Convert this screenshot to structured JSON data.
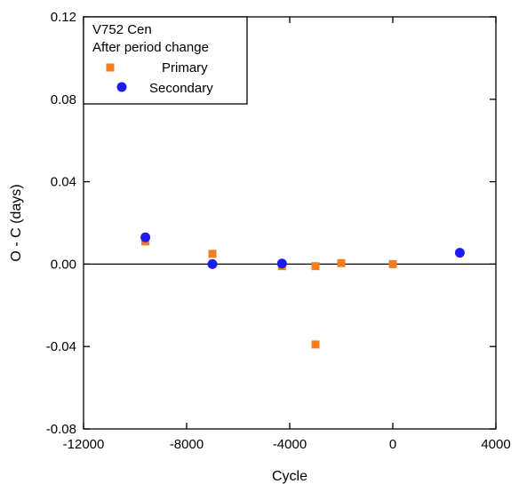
{
  "chart_data": {
    "type": "scatter",
    "title": "",
    "xlabel": "Cycle",
    "ylabel": "O - C (days)",
    "xlim": [
      -12000,
      4000
    ],
    "ylim": [
      -0.08,
      0.12
    ],
    "x_ticks": [
      -12000,
      -8000,
      -4000,
      0,
      4000
    ],
    "x_tick_labels": [
      "-12000",
      "-8000",
      "-4000",
      "0",
      "4000"
    ],
    "y_ticks": [
      -0.08,
      -0.04,
      0.0,
      0.04,
      0.08,
      0.12
    ],
    "y_tick_labels": [
      "-0.08",
      "-0.04",
      "0.00",
      "0.04",
      "0.08",
      "0.12"
    ],
    "zero_line": true,
    "grid": false,
    "legend": {
      "placement": "top-left",
      "title_lines": [
        "V752 Cen",
        "After period change"
      ]
    },
    "series": [
      {
        "name": "Primary",
        "marker": "square",
        "color": "#f57c1f",
        "points": [
          {
            "x": -9600,
            "y": 0.011
          },
          {
            "x": -7000,
            "y": 0.005
          },
          {
            "x": -4300,
            "y": -0.001
          },
          {
            "x": -3000,
            "y": -0.001
          },
          {
            "x": -3000,
            "y": -0.039
          },
          {
            "x": -2000,
            "y": 0.0005
          },
          {
            "x": 0,
            "y": 0.0
          }
        ]
      },
      {
        "name": "Secondary",
        "marker": "circle",
        "color": "#1c1cf0",
        "points": [
          {
            "x": -9600,
            "y": 0.013
          },
          {
            "x": -7000,
            "y": 0.0
          },
          {
            "x": -4300,
            "y": 0.0003
          },
          {
            "x": 2600,
            "y": 0.0055
          }
        ]
      }
    ]
  }
}
